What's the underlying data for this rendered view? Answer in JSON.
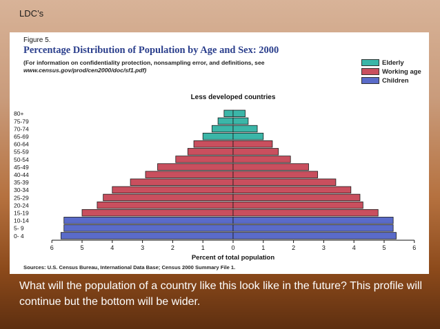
{
  "slide": {
    "title": "LDC’s",
    "question": "What will the population of a country like this look like in the future?   This profile will continue but the bottom will be wider."
  },
  "figure": {
    "label": "Figure 5.",
    "title": "Percentage Distribution of Population by Age and Sex:  2000",
    "note": "(For information on confidentiality protection, nonsampling error, and definitions, see",
    "url": "www.census.gov/prod/cen2000/doc/sf1.pdf)",
    "sources": "Sources:  U.S. Census Bureau, International Data Base; Census 2000 Summary File 1."
  },
  "legend": [
    {
      "label": "Elderly",
      "color": "#3bb6a8"
    },
    {
      "label": "Working age",
      "color": "#c94f5e"
    },
    {
      "label": "Children",
      "color": "#5a6bc9"
    }
  ],
  "chart_data": {
    "type": "bar",
    "orientation": "horizontal-population-pyramid",
    "title": "Less developed countries",
    "xlabel": "Percent of total population",
    "xlim": [
      -6,
      6
    ],
    "x_ticks": [
      6,
      5,
      4,
      3,
      2,
      1,
      0,
      1,
      2,
      3,
      4,
      5,
      6
    ],
    "categories": [
      "0- 4",
      "5- 9",
      "10-14",
      "15-19",
      "20-24",
      "25-29",
      "30-34",
      "35-39",
      "40-44",
      "45-49",
      "50-54",
      "55-59",
      "60-64",
      "65-69",
      "70-74",
      "75-79",
      "80+"
    ],
    "series": [
      {
        "side": "left",
        "values": [
          5.7,
          5.6,
          5.6,
          5.0,
          4.5,
          4.3,
          4.0,
          3.4,
          2.9,
          2.5,
          1.9,
          1.5,
          1.3,
          1.0,
          0.7,
          0.5,
          0.3
        ]
      },
      {
        "side": "right",
        "values": [
          5.4,
          5.3,
          5.3,
          4.8,
          4.3,
          4.2,
          3.9,
          3.4,
          2.8,
          2.5,
          1.9,
          1.5,
          1.3,
          1.0,
          0.8,
          0.5,
          0.4
        ]
      }
    ],
    "groups": [
      {
        "label": "Children",
        "categories": [
          "0- 4",
          "5- 9",
          "10-14"
        ],
        "color": "#5a6bc9"
      },
      {
        "label": "Working age",
        "categories": [
          "15-19",
          "20-24",
          "25-29",
          "30-34",
          "35-39",
          "40-44",
          "45-49",
          "50-54",
          "55-59",
          "60-64"
        ],
        "color": "#c94f5e"
      },
      {
        "label": "Elderly",
        "categories": [
          "65-69",
          "70-74",
          "75-79",
          "80+"
        ],
        "color": "#3bb6a8"
      }
    ]
  }
}
